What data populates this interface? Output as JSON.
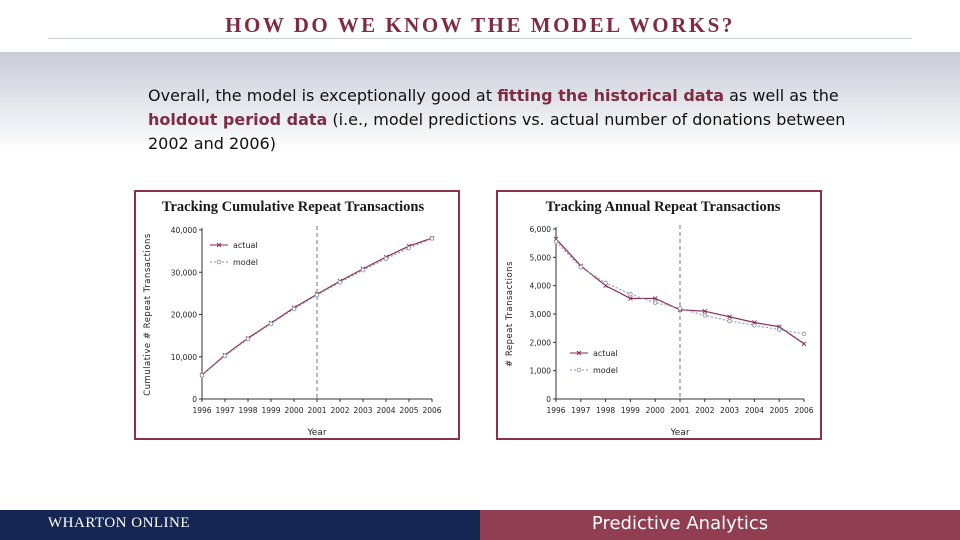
{
  "slide": {
    "title": "HOW DO WE KNOW THE MODEL WORKS?",
    "intro": {
      "p1": "Overall, the model is exceptionally good at ",
      "b1": "fitting the historical data",
      "p2": " as well as the ",
      "b2": "holdout period data",
      "p3": " (i.e., model predictions vs. actual number of donations between 2002 and 2006)"
    }
  },
  "footer": {
    "brand": "WHARTON ONLINE",
    "course": "Predictive Analytics"
  },
  "colors": {
    "accent": "#7f2c43",
    "frame": "#8a3147",
    "actual_line": "#8a2a55",
    "model_line": "#8c96b4",
    "footer_left": "#162653",
    "footer_right": "#913d52"
  },
  "chart_data": [
    {
      "id": "cumulative",
      "type": "line",
      "title": "Tracking Cumulative Repeat Transactions",
      "xlabel": "Year",
      "ylabel": "Cumulative # Repeat Transactions",
      "x": [
        "1996",
        "1997",
        "1998",
        "1999",
        "2000",
        "2001",
        "2002",
        "2003",
        "2004",
        "2005",
        "2006"
      ],
      "ylim": [
        0,
        40000
      ],
      "yticks": [
        0,
        10000,
        20000,
        30000,
        40000
      ],
      "ytick_labels": [
        "0",
        "10,000",
        "20,000",
        "30,000",
        "40,000"
      ],
      "divider_x": "2001",
      "legend_position": "top-left",
      "series": [
        {
          "name": "actual",
          "style": "solid",
          "values": [
            5700,
            10400,
            14400,
            18000,
            21600,
            24800,
            27900,
            30800,
            33600,
            36200,
            38100
          ]
        },
        {
          "name": "model",
          "style": "dotted",
          "values": [
            5600,
            10200,
            14200,
            17800,
            21300,
            24600,
            27600,
            30500,
            33200,
            35700,
            38000
          ]
        }
      ]
    },
    {
      "id": "annual",
      "type": "line",
      "title": "Tracking Annual Repeat Transactions",
      "xlabel": "Year",
      "ylabel": "# Repeat Transactions",
      "x": [
        "1996",
        "1997",
        "1998",
        "1999",
        "2000",
        "2001",
        "2002",
        "2003",
        "2004",
        "2005",
        "2006"
      ],
      "ylim": [
        0,
        6000
      ],
      "yticks": [
        0,
        1000,
        2000,
        3000,
        4000,
        5000,
        6000
      ],
      "ytick_labels": [
        "0",
        "1,000",
        "2,000",
        "3,000",
        "4,000",
        "5,000",
        "6,000"
      ],
      "divider_x": "2001",
      "legend_position": "bottom-left",
      "series": [
        {
          "name": "actual",
          "style": "solid",
          "values": [
            5650,
            4700,
            4000,
            3550,
            3550,
            3150,
            3100,
            2900,
            2700,
            2550,
            1950
          ]
        },
        {
          "name": "model",
          "style": "dotted",
          "values": [
            5550,
            4650,
            4100,
            3700,
            3400,
            3200,
            2950,
            2750,
            2600,
            2450,
            2300
          ]
        }
      ]
    }
  ]
}
